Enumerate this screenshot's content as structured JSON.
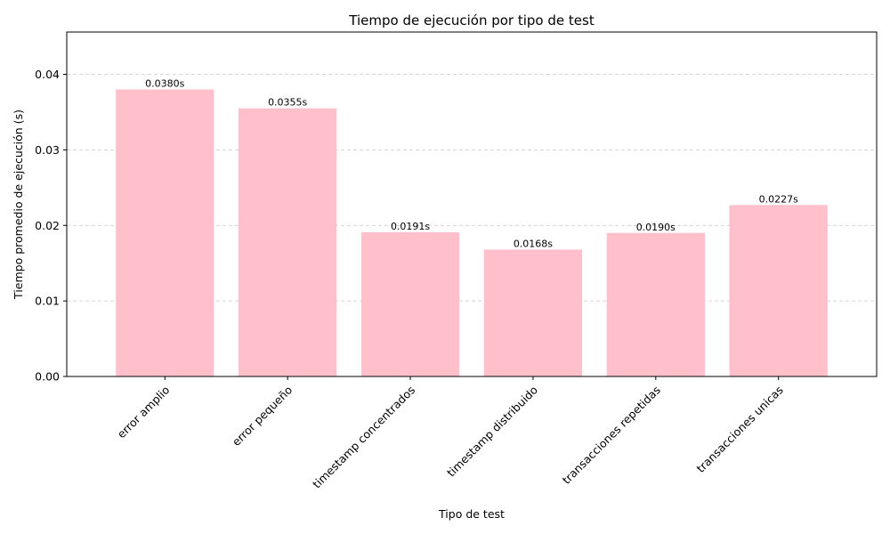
{
  "chart_data": {
    "type": "bar",
    "title": "Tiempo de ejecución por tipo de test",
    "xlabel": "Tipo de test",
    "ylabel": "Tiempo promedio de ejecución (s)",
    "categories": [
      "error amplio",
      "error pequeño",
      "timestamp concentrados",
      "timestamp distribuido",
      "transacciones repetidas",
      "transacciones unicas"
    ],
    "values": [
      0.038,
      0.0355,
      0.0191,
      0.0168,
      0.019,
      0.0227
    ],
    "value_labels": [
      "0.0380s",
      "0.0355s",
      "0.0191s",
      "0.0168s",
      "0.0190s",
      "0.0227s"
    ],
    "ylim": [
      0,
      0.0456
    ],
    "yticks": [
      0.0,
      0.01,
      0.02,
      0.03,
      0.04
    ],
    "ytick_labels": [
      "0.00",
      "0.01",
      "0.02",
      "0.03",
      "0.04"
    ],
    "bar_color": "#ffc0cb",
    "grid": true,
    "grid_axis": "y"
  }
}
